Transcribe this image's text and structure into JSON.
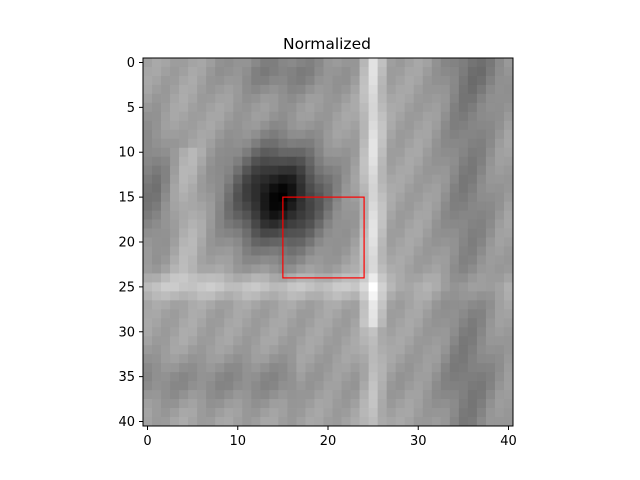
{
  "chart_data": {
    "type": "heatmap",
    "title": "Normalized",
    "xlabel": "",
    "ylabel": "",
    "colormap": "gray",
    "rows": 41,
    "cols": 41,
    "xlim": [
      -0.5,
      40.5
    ],
    "ylim": [
      40.5,
      -0.5
    ],
    "x_ticks": [
      0,
      10,
      20,
      30,
      40
    ],
    "y_ticks": [
      0,
      5,
      10,
      15,
      20,
      25,
      30,
      35,
      40
    ],
    "x_tick_labels": [
      "0",
      "10",
      "20",
      "30",
      "40"
    ],
    "y_tick_labels": [
      "0",
      "5",
      "10",
      "15",
      "20",
      "25",
      "30",
      "35",
      "40"
    ],
    "annotations": [
      {
        "type": "rectangle",
        "x0": 15,
        "y0": 15,
        "x1": 24,
        "y1": 24,
        "color": "#ff0000"
      }
    ]
  }
}
